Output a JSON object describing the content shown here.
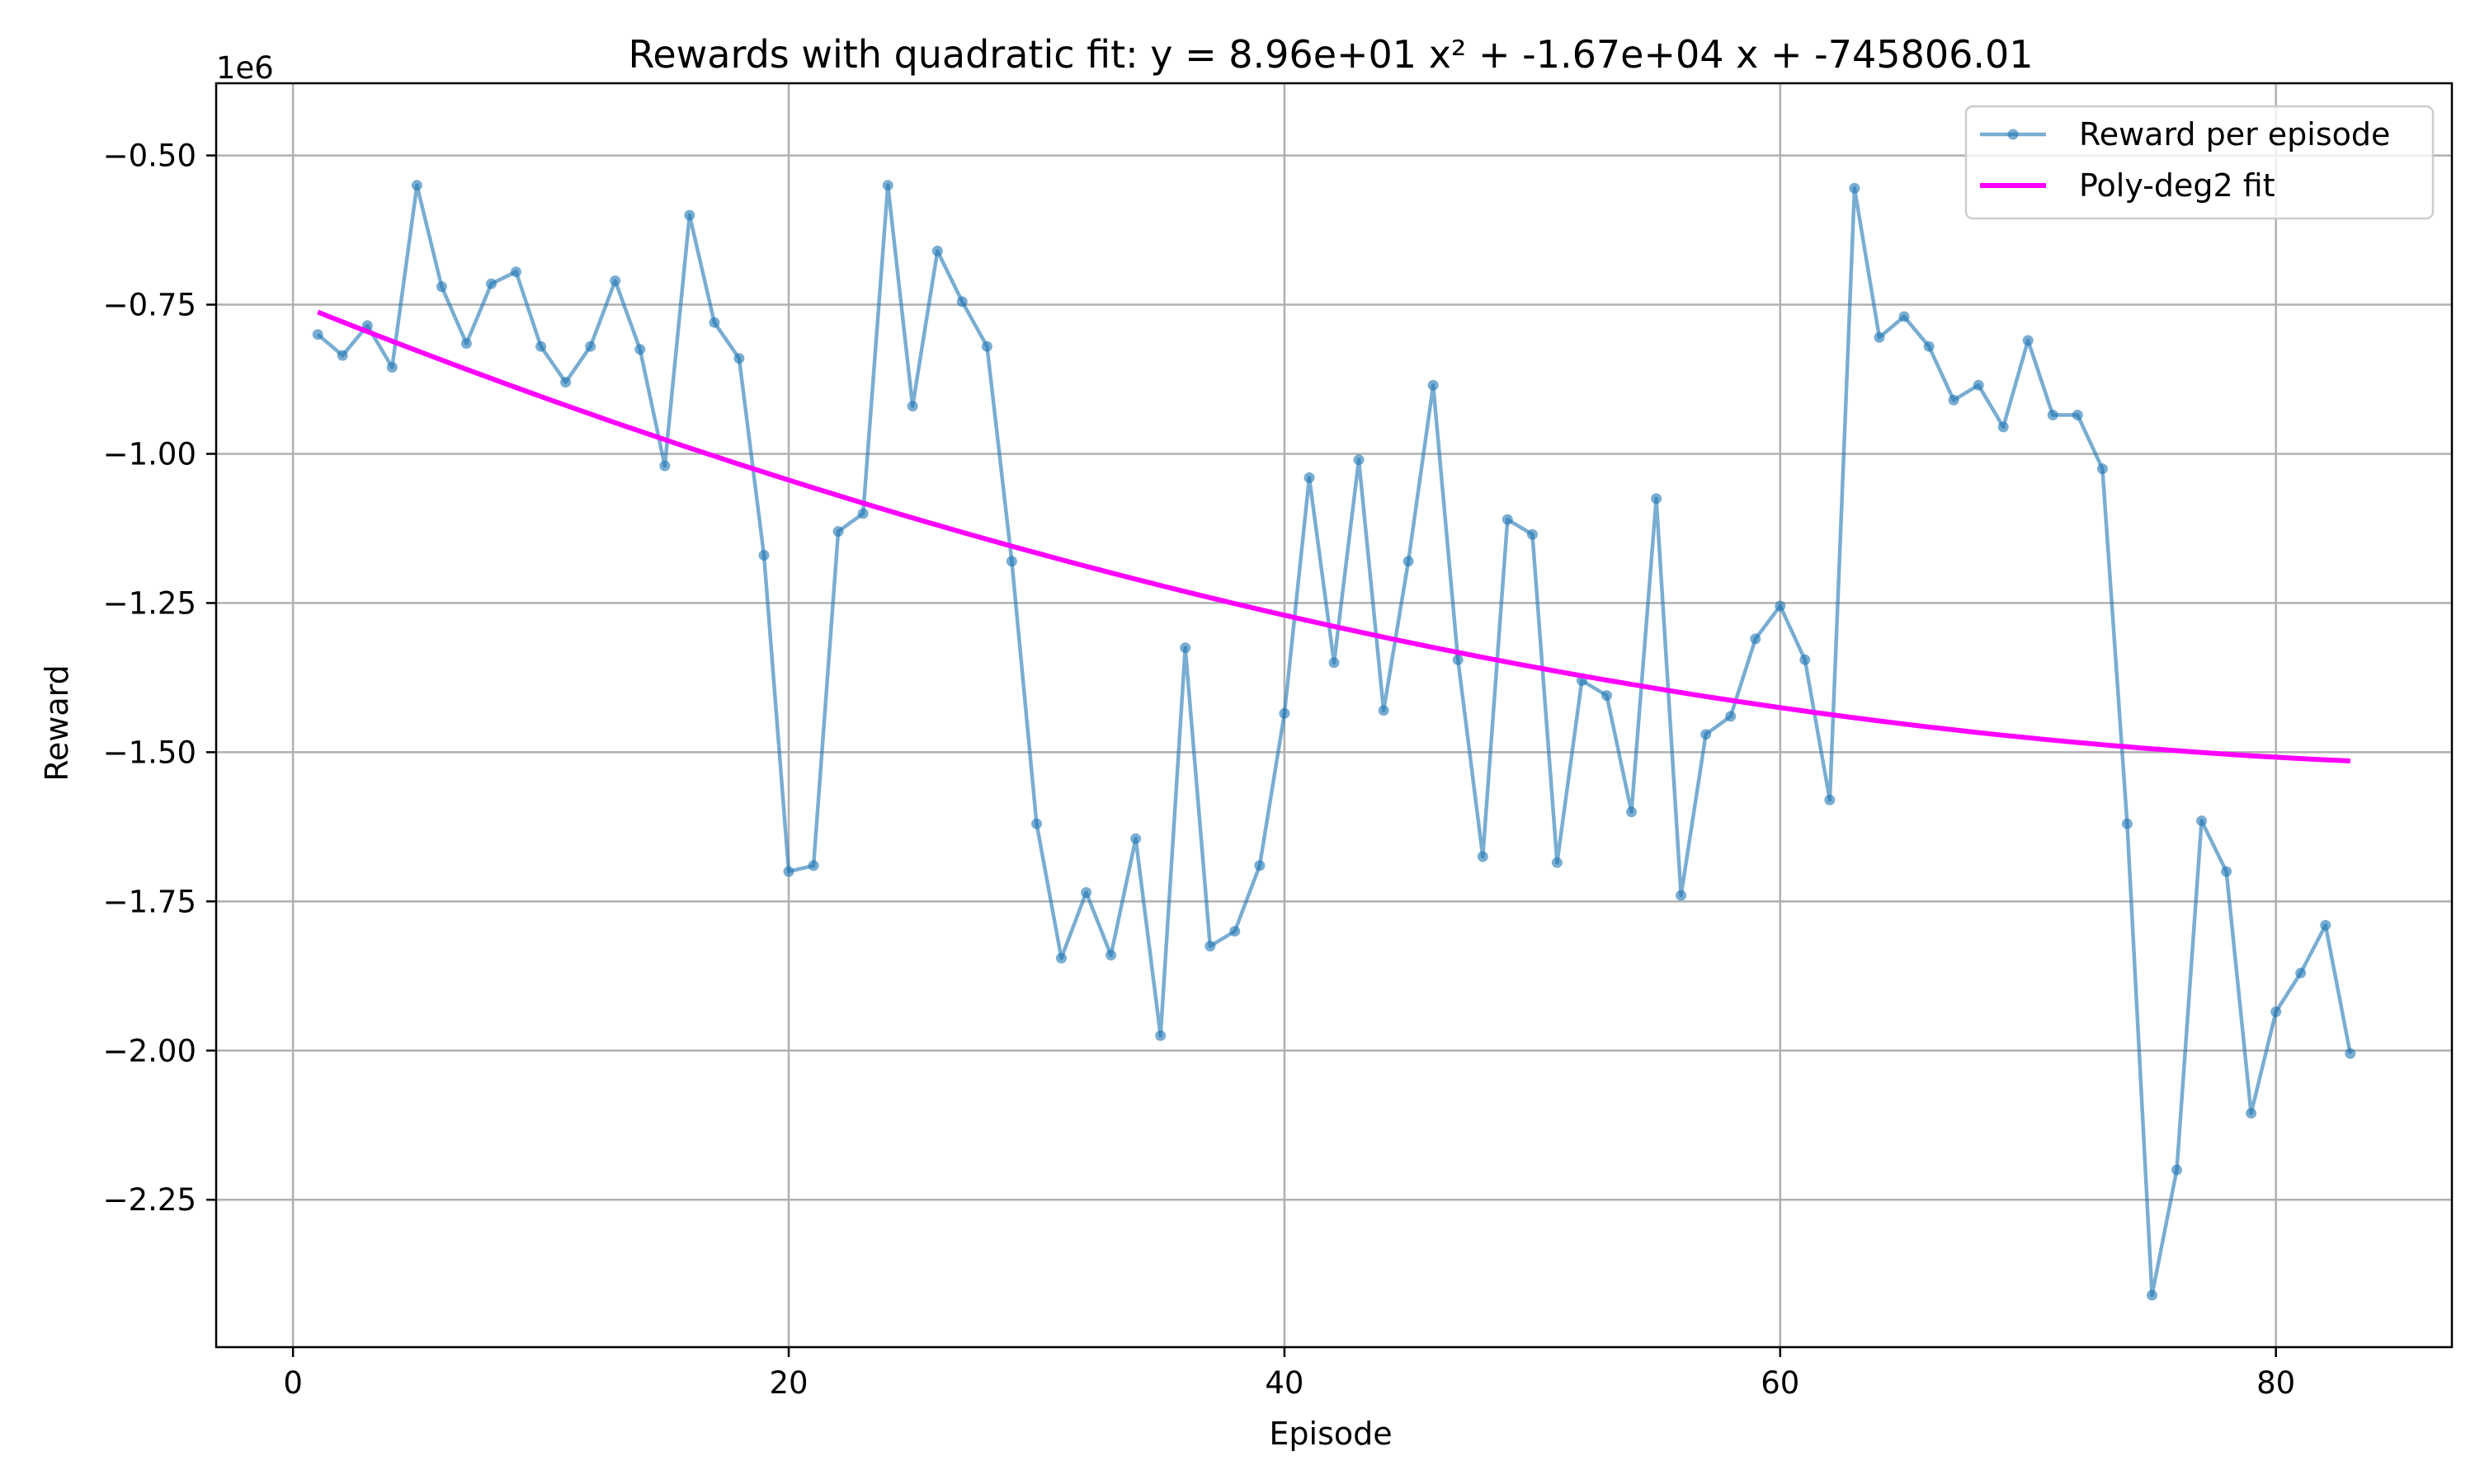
{
  "chart_data": {
    "type": "line",
    "title": "Rewards with quadratic fit: y = 8.96e+01 x² + -1.67e+04 x + -745806.01",
    "xlabel": "Episode",
    "ylabel": "Reward",
    "y_offset_label": "1e6",
    "y_scale_factor": 1000000,
    "xlim": [
      -3.1,
      87.1
    ],
    "ylim": [
      -2.497,
      -0.379
    ],
    "x_ticks": [
      0,
      20,
      40,
      60,
      80
    ],
    "x_tick_labels": [
      "0",
      "20",
      "40",
      "60",
      "80"
    ],
    "y_ticks": [
      -0.5,
      -0.75,
      -1.0,
      -1.25,
      -1.5,
      -1.75,
      -2.0,
      -2.25
    ],
    "y_tick_labels": [
      "−0.50",
      "−0.75",
      "−1.00",
      "−1.25",
      "−1.50",
      "−1.75",
      "−2.00",
      "−2.25"
    ],
    "grid": true,
    "legend_position": "top-right",
    "colors": {
      "reward": "#1f77b4",
      "fit": "#ff00ff"
    },
    "series": [
      {
        "name": "Reward per episode",
        "style": "line-with-markers",
        "x": [
          1,
          2,
          3,
          4,
          5,
          6,
          7,
          8,
          9,
          10,
          11,
          12,
          13,
          14,
          15,
          16,
          17,
          18,
          19,
          20,
          21,
          22,
          23,
          24,
          25,
          26,
          27,
          28,
          29,
          30,
          31,
          32,
          33,
          34,
          35,
          36,
          37,
          38,
          39,
          40,
          41,
          42,
          43,
          44,
          45,
          46,
          47,
          48,
          49,
          50,
          51,
          52,
          53,
          54,
          55,
          56,
          57,
          58,
          59,
          60,
          61,
          62,
          63,
          64,
          65,
          66,
          67,
          68,
          69,
          70,
          71,
          72,
          73,
          74,
          75,
          76,
          77,
          78,
          79,
          80,
          81,
          82,
          83
        ],
        "y": [
          -0.8,
          -0.835,
          -0.785,
          -0.855,
          -0.55,
          -0.72,
          -0.815,
          -0.715,
          -0.695,
          -0.82,
          -0.88,
          -0.82,
          -0.71,
          -0.825,
          -1.02,
          -0.6,
          -0.78,
          -0.84,
          -1.17,
          -1.7,
          -1.69,
          -1.13,
          -1.1,
          -0.55,
          -0.92,
          -0.66,
          -0.745,
          -0.82,
          -1.18,
          -1.62,
          -1.845,
          -1.735,
          -1.84,
          -1.645,
          -1.975,
          -1.325,
          -1.825,
          -1.8,
          -1.69,
          -1.435,
          -1.04,
          -1.35,
          -1.01,
          -1.43,
          -1.18,
          -0.885,
          -1.345,
          -1.675,
          -1.11,
          -1.135,
          -1.685,
          -1.38,
          -1.405,
          -1.6,
          -1.075,
          -1.74,
          -1.47,
          -1.44,
          -1.31,
          -1.255,
          -1.345,
          -1.58,
          -0.555,
          -0.805,
          -0.77,
          -0.82,
          -0.91,
          -0.885,
          -0.955,
          -0.81,
          -0.935,
          -0.935,
          -1.025,
          -1.62,
          -2.41,
          -2.2,
          -1.615,
          -1.7,
          -2.105,
          -1.935,
          -1.87,
          -1.79,
          -2.005
        ]
      },
      {
        "name": "Poly-deg2 fit",
        "style": "line",
        "coefficients": [
          89.6,
          -16700,
          -745806.01
        ],
        "x_range": [
          1,
          83
        ]
      }
    ]
  }
}
